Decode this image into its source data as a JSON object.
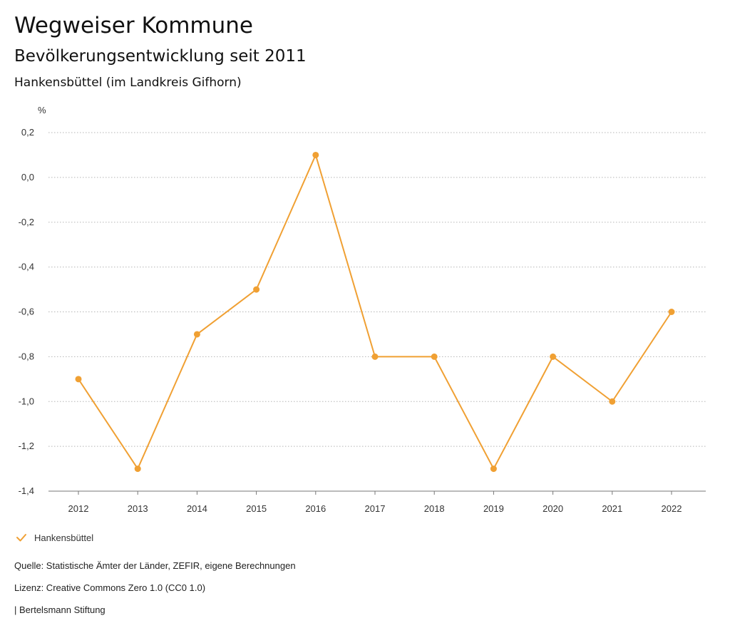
{
  "header": {
    "title": "Wegweiser Kommune",
    "subtitle": "Bevölkerungsentwicklung seit 2011",
    "region": "Hankensbüttel (im Landkreis Gifhorn)"
  },
  "chart_data": {
    "type": "line",
    "ylabel": "%",
    "xlabel": "",
    "x": [
      "2012",
      "2013",
      "2014",
      "2015",
      "2016",
      "2017",
      "2018",
      "2019",
      "2020",
      "2021",
      "2022"
    ],
    "series": [
      {
        "name": "Hankensbüttel",
        "values": [
          -0.9,
          -1.3,
          -0.7,
          -0.5,
          0.1,
          -0.8,
          -0.8,
          -1.3,
          -0.8,
          -1.0,
          -0.6
        ],
        "color": "#f0a033"
      }
    ],
    "ylim": [
      -1.4,
      0.2
    ],
    "yticks": [
      0.2,
      0.0,
      -0.2,
      -0.4,
      -0.6,
      -0.8,
      -1.0,
      -1.2,
      -1.4
    ],
    "ytick_labels": [
      "0,2",
      "0,0",
      "-0,2",
      "-0,4",
      "-0,6",
      "-0,8",
      "-1,0",
      "-1,2",
      "-1,4"
    ],
    "grid": true,
    "legend_position": "bottom-left"
  },
  "legend": {
    "label": "Hankensbüttel",
    "icon": "check-icon"
  },
  "footer": {
    "source": "Quelle: Statistische Ämter der Länder, ZEFIR, eigene Berechnungen",
    "license": "Lizenz: Creative Commons Zero 1.0 (CC0 1.0)",
    "publisher": "| Bertelsmann Stiftung"
  }
}
